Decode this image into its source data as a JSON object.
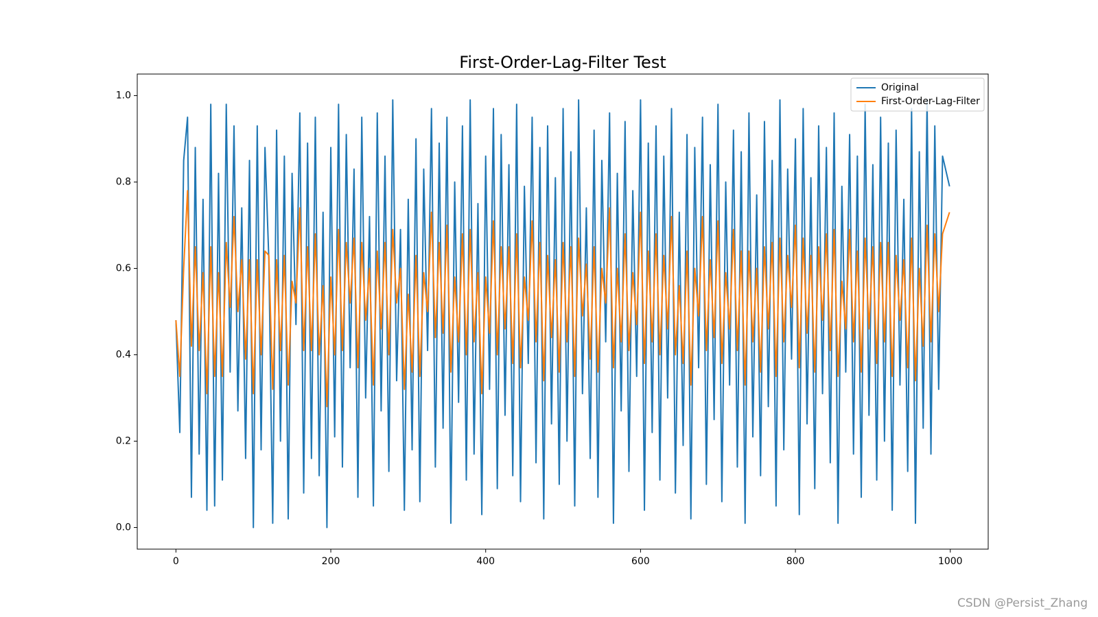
{
  "chart_data": {
    "type": "line",
    "title": "First-Order-Lag-Filter Test",
    "watermark": "CSDN @Persist_Zhang",
    "legend": "upper right",
    "grid": false,
    "xlim": [
      -49.95,
      1048.95
    ],
    "ylim": [
      -0.05,
      1.05
    ],
    "xticks": [
      0,
      200,
      400,
      600,
      800,
      1000
    ],
    "yticks": [
      {
        "value": 0,
        "label": "0.0"
      },
      0.2,
      0.4,
      0.6,
      0.8,
      {
        "value": 1,
        "label": "1.0"
      }
    ],
    "x": [
      0,
      5,
      10,
      15,
      20,
      25,
      30,
      35,
      40,
      45,
      50,
      55,
      60,
      65,
      70,
      75,
      80,
      85,
      90,
      95,
      100,
      105,
      110,
      115,
      120,
      125,
      130,
      135,
      140,
      145,
      150,
      155,
      160,
      165,
      170,
      175,
      180,
      185,
      190,
      195,
      200,
      205,
      210,
      215,
      220,
      225,
      230,
      235,
      240,
      245,
      250,
      255,
      260,
      265,
      270,
      275,
      280,
      285,
      290,
      295,
      300,
      305,
      310,
      315,
      320,
      325,
      330,
      335,
      340,
      345,
      350,
      355,
      360,
      365,
      370,
      375,
      380,
      385,
      390,
      395,
      400,
      405,
      410,
      415,
      420,
      425,
      430,
      435,
      440,
      445,
      450,
      455,
      460,
      465,
      470,
      475,
      480,
      485,
      490,
      495,
      500,
      505,
      510,
      515,
      520,
      525,
      530,
      535,
      540,
      545,
      550,
      555,
      560,
      565,
      570,
      575,
      580,
      585,
      590,
      595,
      600,
      605,
      610,
      615,
      620,
      625,
      630,
      635,
      640,
      645,
      650,
      655,
      660,
      665,
      670,
      675,
      680,
      685,
      690,
      695,
      700,
      705,
      710,
      715,
      720,
      725,
      730,
      735,
      740,
      745,
      750,
      755,
      760,
      765,
      770,
      775,
      780,
      785,
      790,
      795,
      800,
      805,
      810,
      815,
      820,
      825,
      830,
      835,
      840,
      845,
      850,
      855,
      860,
      865,
      870,
      875,
      880,
      885,
      890,
      895,
      900,
      905,
      910,
      915,
      920,
      925,
      930,
      935,
      940,
      945,
      950,
      955,
      960,
      965,
      970,
      975,
      980,
      985,
      990,
      999
    ],
    "series": [
      {
        "name": "Original",
        "color": "#1f77b4",
        "values": [
          0.48,
          0.22,
          0.85,
          0.95,
          0.07,
          0.88,
          0.17,
          0.76,
          0.04,
          0.98,
          0.05,
          0.82,
          0.11,
          0.98,
          0.36,
          0.93,
          0.27,
          0.74,
          0.16,
          0.85,
          0.0,
          0.93,
          0.18,
          0.88,
          0.62,
          0.01,
          0.92,
          0.2,
          0.86,
          0.02,
          0.82,
          0.47,
          0.96,
          0.08,
          0.89,
          0.16,
          0.95,
          0.12,
          0.73,
          0.0,
          0.88,
          0.21,
          0.98,
          0.14,
          0.91,
          0.37,
          0.83,
          0.07,
          0.95,
          0.3,
          0.72,
          0.05,
          0.96,
          0.27,
          0.86,
          0.13,
          0.99,
          0.34,
          0.69,
          0.04,
          0.76,
          0.18,
          0.9,
          0.06,
          0.83,
          0.41,
          0.97,
          0.14,
          0.89,
          0.23,
          0.95,
          0.01,
          0.8,
          0.29,
          0.93,
          0.11,
          0.99,
          0.17,
          0.75,
          0.03,
          0.86,
          0.32,
          0.97,
          0.09,
          0.91,
          0.26,
          0.84,
          0.12,
          0.98,
          0.06,
          0.79,
          0.38,
          0.95,
          0.15,
          0.88,
          0.02,
          0.93,
          0.24,
          0.81,
          0.1,
          0.97,
          0.2,
          0.87,
          0.05,
          0.99,
          0.31,
          0.74,
          0.16,
          0.92,
          0.07,
          0.85,
          0.43,
          0.96,
          0.01,
          0.82,
          0.27,
          0.94,
          0.13,
          0.78,
          0.35,
          0.99,
          0.04,
          0.89,
          0.22,
          0.93,
          0.11,
          0.86,
          0.3,
          0.97,
          0.08,
          0.73,
          0.19,
          0.91,
          0.02,
          0.88,
          0.37,
          0.95,
          0.1,
          0.84,
          0.25,
          0.98,
          0.06,
          0.8,
          0.33,
          0.92,
          0.14,
          0.87,
          0.01,
          0.96,
          0.21,
          0.77,
          0.12,
          0.94,
          0.28,
          0.85,
          0.05,
          0.99,
          0.18,
          0.83,
          0.39,
          0.9,
          0.03,
          0.97,
          0.24,
          0.81,
          0.09,
          0.93,
          0.31,
          0.88,
          0.15,
          0.96,
          0.01,
          0.79,
          0.36,
          0.91,
          0.17,
          0.86,
          0.07,
          0.98,
          0.26,
          0.84,
          0.11,
          0.95,
          0.2,
          0.89,
          0.04,
          0.92,
          0.33,
          0.76,
          0.13,
          0.97,
          0.01,
          0.87,
          0.23,
          0.99,
          0.17,
          0.93,
          0.32,
          0.86,
          0.79
        ]
      },
      {
        "name": "First-Order-Lag-Filter",
        "color": "#ff7f0e",
        "values": [
          0.48,
          0.35,
          0.6,
          0.78,
          0.42,
          0.65,
          0.41,
          0.59,
          0.31,
          0.65,
          0.35,
          0.59,
          0.35,
          0.66,
          0.51,
          0.72,
          0.5,
          0.62,
          0.39,
          0.62,
          0.31,
          0.62,
          0.4,
          0.64,
          0.63,
          0.32,
          0.62,
          0.41,
          0.63,
          0.33,
          0.57,
          0.52,
          0.74,
          0.41,
          0.65,
          0.41,
          0.68,
          0.4,
          0.56,
          0.28,
          0.58,
          0.4,
          0.69,
          0.41,
          0.66,
          0.52,
          0.67,
          0.37,
          0.66,
          0.48,
          0.6,
          0.33,
          0.64,
          0.46,
          0.66,
          0.4,
          0.69,
          0.52,
          0.6,
          0.32,
          0.54,
          0.36,
          0.63,
          0.35,
          0.59,
          0.5,
          0.73,
          0.44,
          0.66,
          0.45,
          0.7,
          0.36,
          0.58,
          0.43,
          0.68,
          0.4,
          0.69,
          0.43,
          0.59,
          0.31,
          0.58,
          0.45,
          0.71,
          0.4,
          0.65,
          0.46,
          0.65,
          0.38,
          0.68,
          0.37,
          0.58,
          0.48,
          0.71,
          0.43,
          0.66,
          0.34,
          0.63,
          0.44,
          0.62,
          0.36,
          0.66,
          0.43,
          0.65,
          0.35,
          0.67,
          0.49,
          0.61,
          0.39,
          0.65,
          0.36,
          0.6,
          0.52,
          0.74,
          0.37,
          0.6,
          0.43,
          0.68,
          0.41,
          0.59,
          0.47,
          0.73,
          0.38,
          0.64,
          0.43,
          0.68,
          0.4,
          0.63,
          0.46,
          0.72,
          0.4,
          0.56,
          0.38,
          0.64,
          0.33,
          0.6,
          0.49,
          0.72,
          0.41,
          0.62,
          0.44,
          0.71,
          0.38,
          0.59,
          0.46,
          0.69,
          0.41,
          0.64,
          0.33,
          0.64,
          0.43,
          0.6,
          0.36,
          0.65,
          0.46,
          0.66,
          0.35,
          0.67,
          0.43,
          0.63,
          0.51,
          0.7,
          0.37,
          0.67,
          0.45,
          0.63,
          0.36,
          0.65,
          0.48,
          0.68,
          0.41,
          0.69,
          0.35,
          0.57,
          0.46,
          0.69,
          0.43,
          0.64,
          0.36,
          0.67,
          0.46,
          0.65,
          0.38,
          0.66,
          0.43,
          0.66,
          0.35,
          0.63,
          0.48,
          0.62,
          0.37,
          0.67,
          0.34,
          0.6,
          0.42,
          0.7,
          0.43,
          0.68,
          0.5,
          0.68,
          0.73
        ]
      }
    ]
  }
}
